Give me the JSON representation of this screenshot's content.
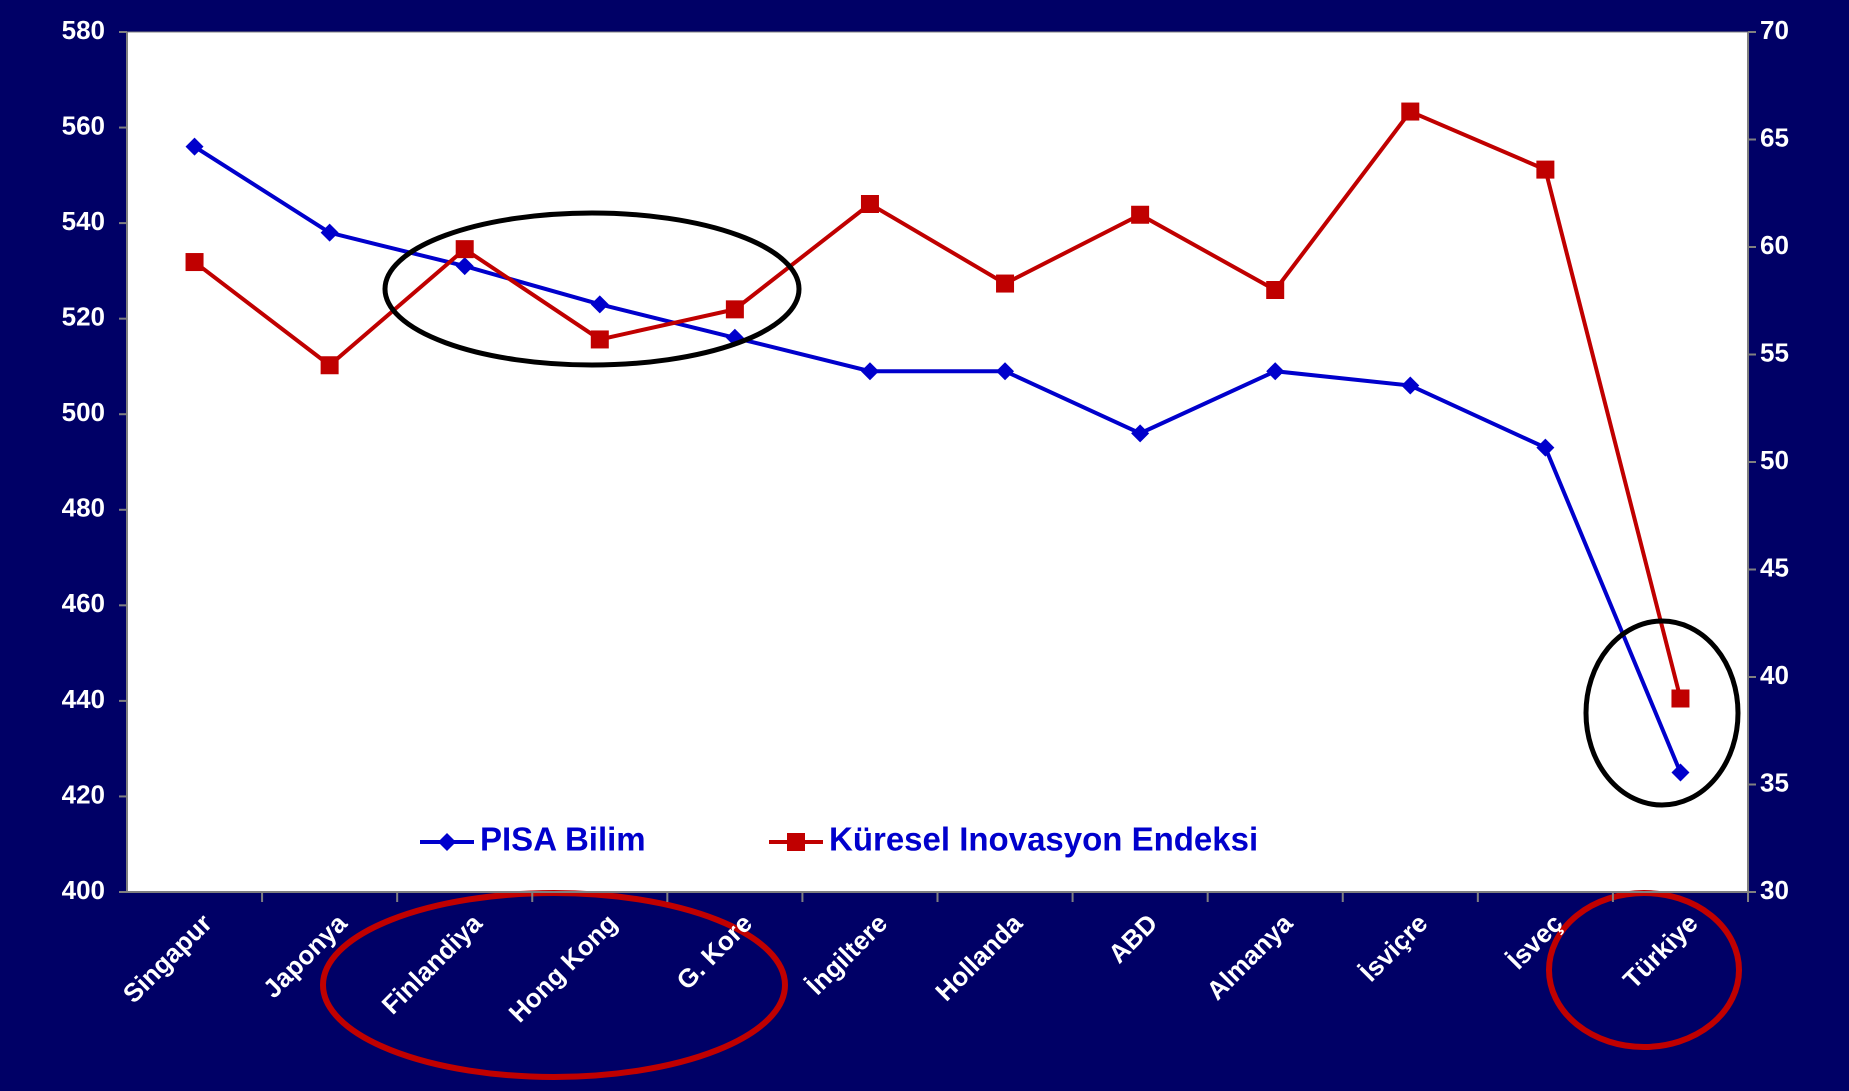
{
  "chart_data": {
    "type": "line",
    "categories": [
      "Singapur",
      "Japonya",
      "Finlandiya",
      "Hong Kong",
      "G. Kore",
      "İngiltere",
      "Hollanda",
      "ABD",
      "Almanya",
      "İsviçre",
      "İsveç",
      "Türkiye"
    ],
    "series": [
      {
        "name": "PISA Bilim",
        "color": "#0000cc",
        "marker": "diamond",
        "values": [
          556,
          538,
          531,
          523,
          516,
          509,
          509,
          496,
          509,
          506,
          493,
          425
        ]
      },
      {
        "name": "Küresel Inovasyon Endeksi",
        "color": "#c00000",
        "marker": "square",
        "axis": "y2",
        "values": [
          59.3,
          54.5,
          59.9,
          55.7,
          57.1,
          62.0,
          58.3,
          61.5,
          58.0,
          66.3,
          63.6,
          39.0
        ]
      }
    ],
    "ylim": [
      400,
      580
    ],
    "yticks": [
      400,
      420,
      440,
      460,
      480,
      500,
      520,
      540,
      560,
      580
    ],
    "y2lim": [
      30,
      70
    ],
    "y2ticks": [
      30,
      35,
      40,
      45,
      50,
      55,
      60,
      65,
      70
    ],
    "grid": false,
    "legend": "bottom"
  }
}
